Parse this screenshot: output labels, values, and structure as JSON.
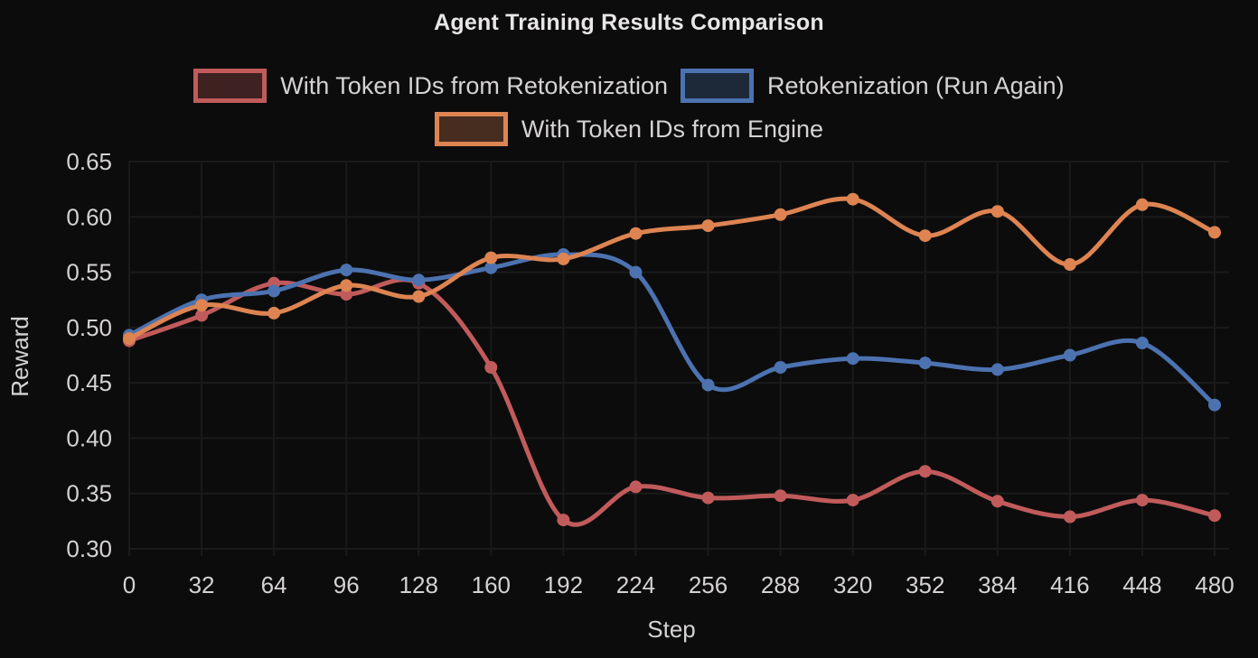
{
  "title": "Agent Training Results Comparison",
  "style": {
    "background": "#0c0c0c",
    "text_color": "#d5d2d2",
    "title_color": "#e8e6e6",
    "grid_color": "#1a1a1a"
  },
  "chart_data": {
    "type": "line",
    "title": "Agent Training Results Comparison",
    "xlabel": "Step",
    "ylabel": "Reward",
    "x": [
      0,
      32,
      64,
      96,
      128,
      160,
      192,
      224,
      256,
      288,
      320,
      352,
      384,
      416,
      448,
      480
    ],
    "xlim": [
      0,
      480
    ],
    "ylim": [
      0.3,
      0.65
    ],
    "yticks": [
      0.3,
      0.35,
      0.4,
      0.45,
      0.5,
      0.55,
      0.6,
      0.65
    ],
    "grid": true,
    "legend_position": "top",
    "legend_rows": [
      [
        0,
        1
      ],
      [
        2
      ]
    ],
    "series": [
      {
        "name": "With Token IDs from Retokenization",
        "color": "#c15b5b",
        "values": [
          0.488,
          0.511,
          0.54,
          0.53,
          0.54,
          0.464,
          0.326,
          0.356,
          0.346,
          0.348,
          0.344,
          0.37,
          0.343,
          0.329,
          0.344,
          0.33
        ]
      },
      {
        "name": "Retokenization (Run Again)",
        "color": "#4c72b0",
        "values": [
          0.493,
          0.525,
          0.533,
          0.552,
          0.543,
          0.554,
          0.566,
          0.55,
          0.448,
          0.464,
          0.472,
          0.468,
          0.462,
          0.475,
          0.486,
          0.43
        ]
      },
      {
        "name": "With Token IDs from Engine",
        "color": "#dd8452",
        "values": [
          0.49,
          0.52,
          0.513,
          0.538,
          0.528,
          0.563,
          0.562,
          0.585,
          0.592,
          0.602,
          0.616,
          0.583,
          0.605,
          0.557,
          0.611,
          0.586
        ]
      }
    ]
  }
}
